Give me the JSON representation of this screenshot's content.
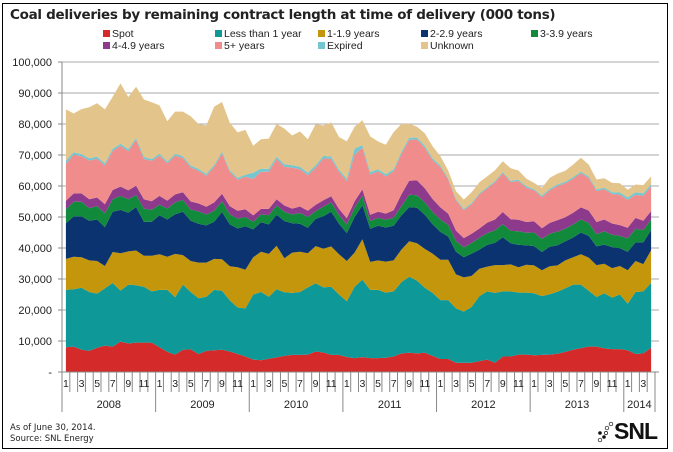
{
  "chart_data": {
    "type": "area",
    "stacked": true,
    "title": "Coal deliveries by remaining contract length at time of delivery (000 tons)",
    "xlabel": "",
    "ylabel": "",
    "ylim": [
      0,
      100000
    ],
    "yticks": [
      0,
      10000,
      20000,
      30000,
      40000,
      50000,
      60000,
      70000,
      80000,
      90000,
      100000
    ],
    "ytick_labels": [
      "-",
      "10,000",
      "20,000",
      "30,000",
      "40,000",
      "50,000",
      "60,000",
      "70,000",
      "80,000",
      "90,000",
      "100,000"
    ],
    "x_month_ticks": [
      "1",
      "3",
      "5",
      "7",
      "9",
      "11"
    ],
    "years": [
      "2008",
      "2009",
      "2010",
      "2011",
      "2012",
      "2013",
      "2014"
    ],
    "x_start": "2008-01",
    "n_months": 76,
    "grid": true,
    "legend_position": "top",
    "footnotes": [
      "As of June 30, 2014.",
      "Source: SNL Energy"
    ],
    "brand": "SNL",
    "series": [
      {
        "name": "Spot",
        "color": "#d42a2a",
        "values": [
          8000,
          8200,
          7200,
          6800,
          7800,
          8500,
          8200,
          9800,
          9200,
          9500,
          9500,
          9500,
          8000,
          6500,
          5600,
          7200,
          7300,
          5800,
          6800,
          7000,
          7200,
          6600,
          5800,
          5000,
          4000,
          3800,
          4300,
          4700,
          5200,
          5500,
          5500,
          5600,
          6600,
          6300,
          5500,
          5500,
          4800,
          4500,
          4800,
          4500,
          4500,
          4600,
          5000,
          6000,
          6200,
          6000,
          6200,
          5200,
          4200,
          4200,
          3000,
          3000,
          3000,
          3500,
          4000,
          3000,
          5000,
          5000,
          5600,
          5600,
          5400,
          5500,
          5600,
          5900,
          6500,
          7200,
          7700,
          8200,
          8200,
          7600,
          7400,
          7400,
          7000,
          5800,
          6000,
          7800
        ]
      },
      {
        "name": "Less than 1 year",
        "color": "#0e9898",
        "values": [
          18500,
          18500,
          20000,
          19000,
          17500,
          18500,
          20500,
          16500,
          19000,
          18500,
          18000,
          16500,
          18500,
          20000,
          18500,
          21000,
          18500,
          18000,
          17500,
          19500,
          19000,
          16500,
          15000,
          15500,
          21000,
          22000,
          20000,
          22000,
          20500,
          20000,
          20300,
          21700,
          22000,
          21000,
          22000,
          19500,
          18000,
          23000,
          25000,
          22000,
          22000,
          21000,
          21000,
          23000,
          24500,
          23500,
          21000,
          20300,
          19000,
          19000,
          17500,
          16500,
          18000,
          21000,
          22000,
          22500,
          21000,
          21000,
          20000,
          20000,
          20000,
          19000,
          19500,
          20000,
          20500,
          21000,
          20500,
          18000,
          16000,
          17800,
          16600,
          17600,
          15000,
          20000,
          20000,
          21000
        ]
      },
      {
        "name": "1-1.9 years",
        "color": "#c4960c",
        "values": [
          10000,
          10500,
          9800,
          10200,
          10500,
          7200,
          10000,
          12000,
          10700,
          11200,
          10000,
          11500,
          11500,
          10700,
          14000,
          9500,
          10000,
          11500,
          11000,
          10000,
          10200,
          11000,
          13000,
          12500,
          12000,
          13000,
          13800,
          14000,
          11000,
          13000,
          13000,
          11000,
          12000,
          12500,
          13000,
          13000,
          13000,
          11000,
          13000,
          9000,
          9500,
          10000,
          10000,
          10500,
          11500,
          12000,
          12500,
          12700,
          13000,
          13000,
          11000,
          11000,
          10000,
          8800,
          8000,
          9000,
          8500,
          8700,
          8200,
          9000,
          9000,
          8300,
          9000,
          8500,
          9000,
          8800,
          9800,
          10700,
          10300,
          9500,
          9500,
          9200,
          10800,
          10000,
          8800,
          10500
        ]
      },
      {
        "name": "2-2.9 years",
        "color": "#0a3370",
        "values": [
          11500,
          13000,
          13200,
          12800,
          13400,
          12500,
          13000,
          14000,
          12500,
          14000,
          11000,
          11000,
          12500,
          12000,
          12800,
          14000,
          13000,
          12500,
          12000,
          12000,
          15200,
          13500,
          12500,
          14000,
          9000,
          9500,
          9500,
          10000,
          12000,
          9500,
          9000,
          8200,
          8800,
          10500,
          11200,
          9800,
          9000,
          11500,
          11000,
          10700,
          11200,
          11000,
          11200,
          11000,
          11000,
          11500,
          11000,
          9400,
          9000,
          7500,
          7300,
          6500,
          7200,
          6200,
          7000,
          7200,
          9000,
          6800,
          7200,
          6300,
          6200,
          5900,
          6300,
          6500,
          6200,
          6400,
          7000,
          7000,
          6000,
          6200,
          6800,
          5700,
          6000,
          6000,
          7000,
          6500
        ]
      },
      {
        "name": "3-3.9 years",
        "color": "#128a3c",
        "values": [
          4500,
          4700,
          4700,
          4000,
          4300,
          4500,
          4000,
          4500,
          4300,
          3900,
          4200,
          3800,
          3500,
          3500,
          3800,
          3800,
          3600,
          4000,
          3500,
          3500,
          3500,
          3300,
          3200,
          3000,
          2500,
          2500,
          3000,
          3000,
          3000,
          2800,
          3500,
          3500,
          2500,
          3000,
          3000,
          2800,
          2800,
          3000,
          3000,
          2500,
          2500,
          2500,
          2500,
          3000,
          4000,
          4000,
          4000,
          4000,
          4000,
          3800,
          3500,
          3200,
          3400,
          3800,
          3800,
          4000,
          4200,
          4000,
          4400,
          4000,
          4400,
          4200,
          4200,
          4400,
          4000,
          4200,
          4200,
          4200,
          4000,
          4300,
          4000,
          4000,
          4300,
          4400,
          4000,
          3400
        ]
      },
      {
        "name": "4-4.9 years",
        "color": "#8e3a8c",
        "values": [
          2700,
          2700,
          2700,
          2900,
          2800,
          2900,
          3000,
          3000,
          2900,
          3000,
          3000,
          2800,
          2800,
          2600,
          2600,
          2500,
          2600,
          2600,
          2500,
          2700,
          2400,
          2600,
          2500,
          2500,
          2000,
          1800,
          2000,
          2000,
          2000,
          1900,
          2100,
          2000,
          2000,
          2100,
          2000,
          2000,
          2000,
          2100,
          2100,
          2000,
          2000,
          2000,
          2500,
          3800,
          4500,
          4800,
          4600,
          4200,
          3900,
          3600,
          3300,
          3000,
          3000,
          3000,
          3400,
          3500,
          3900,
          3800,
          3700,
          3500,
          3600,
          3500,
          3500,
          3700,
          3700,
          3800,
          3900,
          4000,
          3900,
          3800,
          3600,
          3500,
          3400,
          3500,
          3000,
          2700
        ]
      },
      {
        "name": "5+ years",
        "color": "#f08d8c",
        "values": [
          12000,
          12500,
          12000,
          12500,
          12500,
          12500,
          12600,
          13200,
          12600,
          14800,
          13000,
          13000,
          13000,
          12000,
          12500,
          11000,
          11000,
          10500,
          10000,
          11500,
          13000,
          11000,
          10000,
          10500,
          11800,
          12000,
          12000,
          13000,
          12500,
          13200,
          12000,
          11500,
          12000,
          13500,
          12000,
          12000,
          12000,
          15000,
          13500,
          13000,
          13000,
          12000,
          12500,
          13000,
          13200,
          13200,
          13000,
          12500,
          13000,
          11000,
          9800,
          9000,
          9500,
          11000,
          11000,
          12000,
          12500,
          12000,
          12500,
          11000,
          10000,
          10000,
          10500,
          11000,
          11000,
          11000,
          11000,
          10500,
          10000,
          9800,
          9500,
          9800,
          9000,
          7500,
          8000,
          8000
        ]
      },
      {
        "name": "Expired",
        "color": "#74c6cf",
        "values": [
          1000,
          800,
          700,
          700,
          700,
          700,
          700,
          600,
          700,
          600,
          700,
          600,
          600,
          600,
          600,
          600,
          600,
          600,
          600,
          600,
          600,
          600,
          600,
          600,
          2000,
          1000,
          900,
          800,
          800,
          800,
          800,
          800,
          800,
          800,
          800,
          700,
          800,
          2000,
          800,
          800,
          700,
          700,
          700,
          700,
          700,
          600,
          700,
          600,
          500,
          400,
          400,
          400,
          400,
          400,
          400,
          400,
          400,
          400,
          400,
          500,
          400,
          500,
          500,
          500,
          500,
          500,
          500,
          500,
          500,
          500,
          600,
          700,
          800,
          800,
          800,
          700
        ]
      },
      {
        "name": "Unknown",
        "color": "#e3c48a",
        "values": [
          16500,
          12500,
          14500,
          16500,
          17200,
          17400,
          16800,
          19500,
          16800,
          16500,
          18500,
          18300,
          15600,
          13000,
          13600,
          14400,
          15900,
          14500,
          15600,
          18800,
          16000,
          15300,
          14700,
          14500,
          8700,
          9500,
          9800,
          10500,
          11500,
          9600,
          11400,
          10800,
          13200,
          9800,
          11000,
          10500,
          12000,
          7000,
          8000,
          11500,
          9000,
          9500,
          12000,
          9000,
          4500,
          3500,
          4000,
          3900,
          3000,
          2500,
          2500,
          3000,
          3500,
          3500,
          3500,
          3500,
          3500,
          4000,
          3000,
          2500,
          2000,
          2500,
          3500,
          3500,
          3500,
          4000,
          4500,
          3800,
          3200,
          3000,
          3000,
          3000,
          2500,
          2500,
          2700,
          2500
        ]
      }
    ]
  }
}
